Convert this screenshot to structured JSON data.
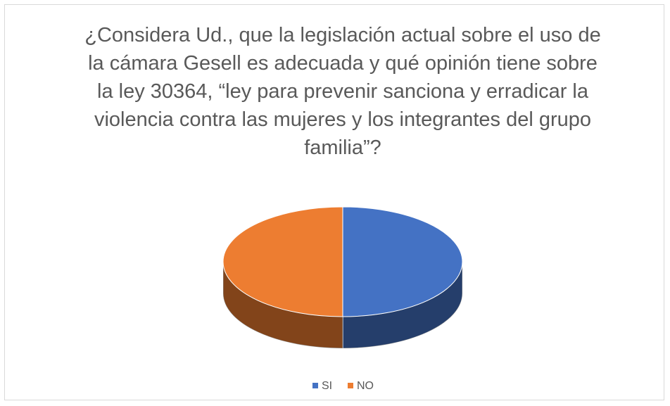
{
  "chart_data": {
    "type": "pie3d",
    "title": "¿Considera Ud., que la legislación actual sobre el uso de la cámara Gesell es adecuada y qué opinión tiene sobre la ley 30364, “ley para prevenir sanciona y erradicar la violencia contra las mujeres y los integrantes del grupo familia”?",
    "categories": [
      "SI",
      "NO"
    ],
    "values": [
      50,
      50
    ],
    "colors": [
      "#4472c4",
      "#ed7d31"
    ],
    "legend": "bottom"
  }
}
